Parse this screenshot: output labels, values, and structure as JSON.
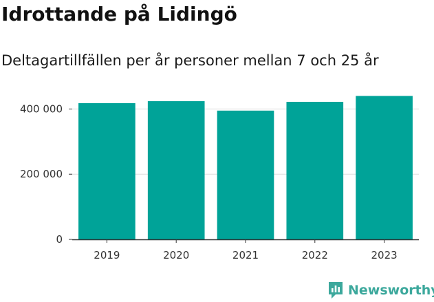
{
  "title": "Idrottande på Lidingö",
  "subtitle": "Deltagartillfällen per år personer mellan 7 och 25 år",
  "brand": {
    "name": "Newsworthy",
    "logo_icon": "newsworthy-logo-icon",
    "color": "#3ca89c"
  },
  "chart_data": {
    "type": "bar",
    "categories": [
      "2019",
      "2020",
      "2021",
      "2022",
      "2023"
    ],
    "values": [
      418000,
      424000,
      395000,
      422000,
      440000
    ],
    "ylim": [
      0,
      460000
    ],
    "yticks": [
      0,
      200000,
      400000
    ],
    "ytick_labels": [
      "0",
      "200 000",
      "400 000"
    ],
    "xlabel": "",
    "ylabel": "",
    "grid": true,
    "bar_color": "#00a398",
    "grid_color": "#dddddd",
    "axis_color": "#333333"
  }
}
